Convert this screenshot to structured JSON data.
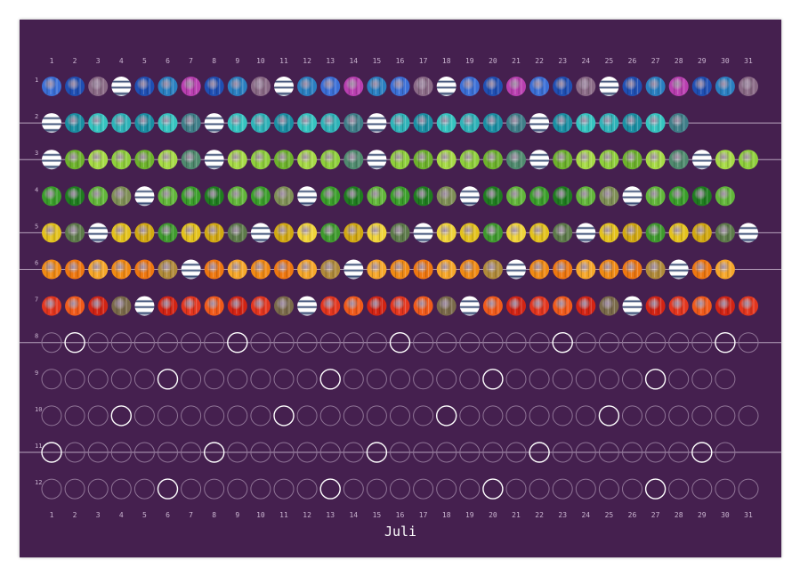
{
  "month_label": "Juli",
  "days": [
    "1",
    "2",
    "3",
    "4",
    "5",
    "6",
    "7",
    "8",
    "9",
    "10",
    "11",
    "12",
    "13",
    "14",
    "15",
    "16",
    "17",
    "18",
    "19",
    "20",
    "21",
    "22",
    "23",
    "24",
    "25",
    "26",
    "27",
    "28",
    "29",
    "30",
    "31"
  ],
  "rows": [
    {
      "label": "1",
      "count": 31,
      "palette": [
        "#3b6fd6",
        "#1f4fb3",
        "#2a7fc0"
      ],
      "faded": "#8a6a86",
      "accent": "#b93fb0",
      "line": false,
      "special": {
        "3": "f",
        "4": "w",
        "7": "a",
        "10": "f",
        "11": "w",
        "14": "a",
        "17": "f",
        "18": "w",
        "21": "a",
        "24": "f",
        "25": "w",
        "28": "a",
        "31": "f"
      }
    },
    {
      "label": "2",
      "count": 28,
      "palette": [
        "#2fb3b8",
        "#1a8fa3",
        "#36c4c0"
      ],
      "faded": "#3f7e88",
      "line": true,
      "special": {
        "1": "w",
        "7": "f",
        "8": "w",
        "14": "f",
        "15": "w",
        "21": "f",
        "22": "w",
        "28": "f"
      }
    },
    {
      "label": "3",
      "count": 31,
      "palette": [
        "#8fcf3c",
        "#6db22c",
        "#a6da46"
      ],
      "faded": "#4f8a6e",
      "line": true,
      "special": {
        "1": "w",
        "7": "f",
        "8": "w",
        "14": "f",
        "15": "w",
        "21": "f",
        "22": "w",
        "28": "f",
        "29": "w"
      }
    },
    {
      "label": "4",
      "count": 30,
      "palette": [
        "#3a9e2a",
        "#1f7d1f",
        "#62b63a"
      ],
      "faded": "#7f8f56",
      "line": false,
      "special": {
        "4": "f",
        "5": "w",
        "11": "f",
        "12": "w",
        "18": "f",
        "19": "w",
        "25": "f",
        "26": "w"
      }
    },
    {
      "label": "5",
      "count": 31,
      "palette": [
        "#e3c21e",
        "#d1a812",
        "#efd33a"
      ],
      "faded": "#5d7a4a",
      "accent": "#3f9a2e",
      "line": true,
      "special": {
        "2": "f",
        "3": "w",
        "6": "a",
        "9": "f",
        "10": "w",
        "13": "a",
        "16": "f",
        "17": "w",
        "20": "a",
        "23": "f",
        "24": "w",
        "27": "a",
        "30": "f",
        "31": "w"
      }
    },
    {
      "label": "6",
      "count": 30,
      "palette": [
        "#f08a14",
        "#ee7710",
        "#f6a72a"
      ],
      "faded": "#b08a3a",
      "line": true,
      "special": {
        "6": "f",
        "7": "w",
        "13": "f",
        "14": "w",
        "20": "f",
        "21": "w",
        "27": "f",
        "28": "w"
      }
    },
    {
      "label": "7",
      "count": 31,
      "palette": [
        "#e3361e",
        "#f05a1a",
        "#d12414"
      ],
      "faded": "#7a6a4a",
      "line": false,
      "special": {
        "4": "f",
        "5": "w",
        "11": "f",
        "12": "w",
        "18": "f",
        "19": "w",
        "25": "f",
        "26": "w"
      }
    },
    {
      "label": "8",
      "count": 31,
      "line": true,
      "highlight": [
        2,
        9,
        16,
        23,
        30
      ]
    },
    {
      "label": "9",
      "count": 30,
      "line": false,
      "highlight": [
        6,
        13,
        20,
        27
      ]
    },
    {
      "label": "10",
      "count": 31,
      "line": false,
      "highlight": [
        4,
        11,
        18,
        25
      ]
    },
    {
      "label": "11",
      "count": 30,
      "line": true,
      "highlight": [
        1,
        8,
        15,
        22,
        29
      ]
    },
    {
      "label": "12",
      "count": 31,
      "line": false,
      "highlight": [
        6,
        13,
        20,
        27
      ]
    }
  ]
}
